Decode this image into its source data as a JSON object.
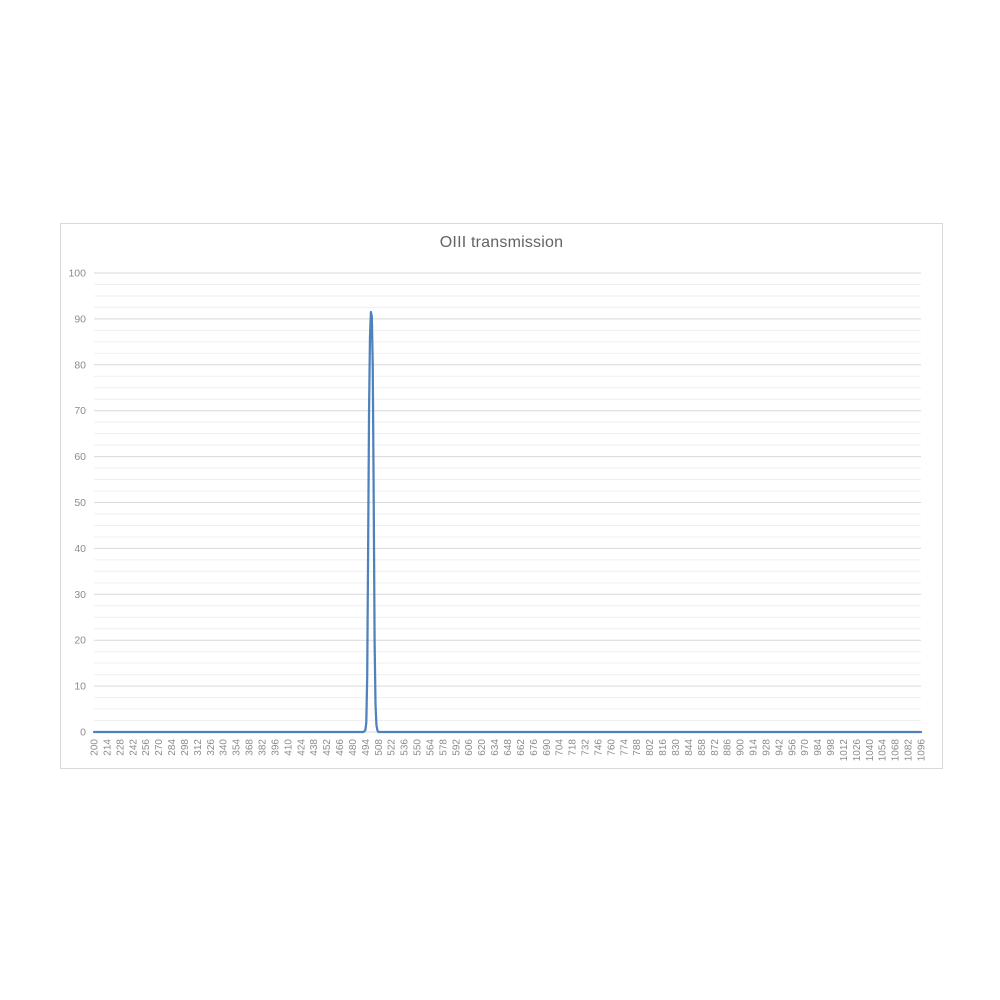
{
  "page": {
    "background_color": "#ffffff"
  },
  "chart_data": {
    "type": "line",
    "title": "OIII transmission",
    "xlabel": "",
    "ylabel": "",
    "legend": "none",
    "grid": "horizontal major and minor, no vertical gridlines",
    "xlim": [
      200,
      1096
    ],
    "ylim": [
      0,
      100
    ],
    "x_tick_labels": [
      200,
      214,
      228,
      242,
      256,
      270,
      284,
      298,
      312,
      326,
      340,
      354,
      368,
      382,
      396,
      410,
      424,
      438,
      452,
      466,
      480,
      494,
      508,
      522,
      536,
      550,
      564,
      578,
      592,
      606,
      620,
      634,
      648,
      662,
      676,
      690,
      704,
      718,
      732,
      746,
      760,
      774,
      788,
      802,
      816,
      830,
      844,
      858,
      872,
      886,
      900,
      914,
      928,
      942,
      956,
      970,
      984,
      998,
      1012,
      1026,
      1040,
      1054,
      1068,
      1082,
      1096
    ],
    "x_tick_label_rotation_deg": -90,
    "y_ticks": [
      0,
      10,
      20,
      30,
      40,
      50,
      60,
      70,
      80,
      90,
      100
    ],
    "y_minor_step": 2.5,
    "series": [
      {
        "name": "OIII transmission",
        "color": "#4f81bd",
        "stroke_width": 2.25,
        "baseline_value": 0,
        "points": [
          [
            200,
            0
          ],
          [
            490,
            0
          ],
          [
            492,
            0
          ],
          [
            494,
            0.4
          ],
          [
            495,
            2
          ],
          [
            496,
            12
          ],
          [
            497,
            40
          ],
          [
            498,
            70
          ],
          [
            499,
            86
          ],
          [
            500,
            91.5
          ],
          [
            501,
            90.5
          ],
          [
            502,
            80
          ],
          [
            503,
            52
          ],
          [
            504,
            20
          ],
          [
            505,
            6
          ],
          [
            506,
            1.5
          ],
          [
            507,
            0.4
          ],
          [
            508,
            0
          ],
          [
            510,
            0
          ],
          [
            1096,
            0
          ]
        ],
        "peak": {
          "x": 500,
          "value": 91.5
        }
      }
    ],
    "colors": {
      "title_text": "#636363",
      "tick_label_text": "#8c8c8c",
      "major_gridline": "#d9d9d9",
      "minor_gridline": "#efefef",
      "axis_line": "#d9d9d9",
      "frame_border": "#d9d9d9"
    }
  }
}
